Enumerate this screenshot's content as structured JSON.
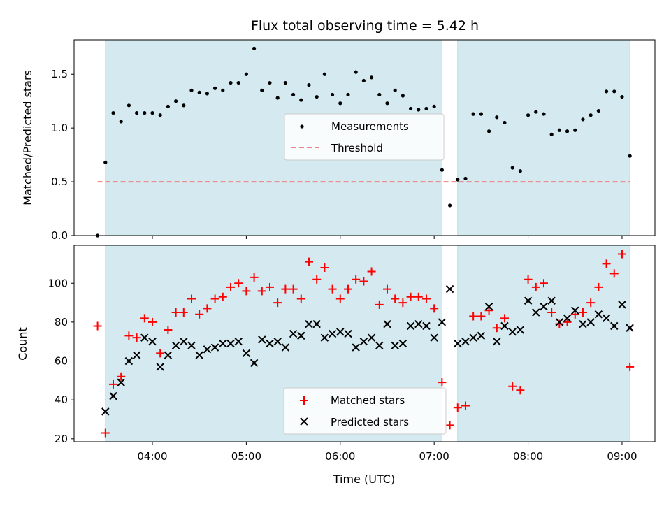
{
  "chart_data": [
    {
      "type": "scatter",
      "title": "Flux total observing time = 5.42 h",
      "ylabel": "Matched/Predicted stars",
      "xlabel": "",
      "ylim": [
        0,
        1.82
      ],
      "xlim": [
        "03:10",
        "09:21"
      ],
      "yticks": [
        0.0,
        0.5,
        1.0,
        1.5
      ],
      "ytick_labels": [
        "0.0",
        "0.5",
        "1.0",
        "1.5"
      ],
      "shaded_intervals": [
        [
          "03:30",
          "07:05"
        ],
        [
          "07:15",
          "09:05"
        ]
      ],
      "shade_color": "#d4eaf0",
      "legend_position": "center",
      "series": [
        {
          "name": "Measurements",
          "marker": "dot",
          "color": "#000000",
          "points": [
            [
              "03:25",
              0.0
            ],
            [
              "03:30",
              0.68
            ],
            [
              "03:35",
              1.14
            ],
            [
              "03:40",
              1.06
            ],
            [
              "03:45",
              1.21
            ],
            [
              "03:50",
              1.14
            ],
            [
              "03:55",
              1.14
            ],
            [
              "04:00",
              1.14
            ],
            [
              "04:05",
              1.12
            ],
            [
              "04:10",
              1.2
            ],
            [
              "04:15",
              1.25
            ],
            [
              "04:20",
              1.21
            ],
            [
              "04:25",
              1.35
            ],
            [
              "04:30",
              1.33
            ],
            [
              "04:35",
              1.32
            ],
            [
              "04:40",
              1.37
            ],
            [
              "04:45",
              1.35
            ],
            [
              "04:50",
              1.42
            ],
            [
              "04:55",
              1.42
            ],
            [
              "05:00",
              1.5
            ],
            [
              "05:05",
              1.74
            ],
            [
              "05:10",
              1.35
            ],
            [
              "05:15",
              1.42
            ],
            [
              "05:20",
              1.28
            ],
            [
              "05:25",
              1.42
            ],
            [
              "05:30",
              1.31
            ],
            [
              "05:35",
              1.26
            ],
            [
              "05:40",
              1.4
            ],
            [
              "05:45",
              1.29
            ],
            [
              "05:50",
              1.5
            ],
            [
              "05:55",
              1.31
            ],
            [
              "06:00",
              1.23
            ],
            [
              "06:05",
              1.31
            ],
            [
              "06:10",
              1.52
            ],
            [
              "06:15",
              1.44
            ],
            [
              "06:20",
              1.47
            ],
            [
              "06:25",
              1.31
            ],
            [
              "06:30",
              1.23
            ],
            [
              "06:35",
              1.35
            ],
            [
              "06:40",
              1.3
            ],
            [
              "06:45",
              1.18
            ],
            [
              "06:50",
              1.17
            ],
            [
              "06:55",
              1.18
            ],
            [
              "07:00",
              1.2
            ],
            [
              "07:05",
              0.61
            ],
            [
              "07:10",
              0.28
            ],
            [
              "07:15",
              0.52
            ],
            [
              "07:20",
              0.53
            ],
            [
              "07:25",
              1.13
            ],
            [
              "07:30",
              1.13
            ],
            [
              "07:35",
              0.97
            ],
            [
              "07:40",
              1.1
            ],
            [
              "07:45",
              1.05
            ],
            [
              "07:50",
              0.63
            ],
            [
              "07:55",
              0.6
            ],
            [
              "08:00",
              1.12
            ],
            [
              "08:05",
              1.15
            ],
            [
              "08:10",
              1.13
            ],
            [
              "08:15",
              0.94
            ],
            [
              "08:20",
              0.98
            ],
            [
              "08:25",
              0.97
            ],
            [
              "08:30",
              0.98
            ],
            [
              "08:35",
              1.08
            ],
            [
              "08:40",
              1.12
            ],
            [
              "08:45",
              1.16
            ],
            [
              "08:50",
              1.34
            ],
            [
              "08:55",
              1.34
            ],
            [
              "09:00",
              1.29
            ],
            [
              "09:05",
              0.74
            ]
          ]
        },
        {
          "name": "Threshold",
          "marker": "dashed-line",
          "color": "#f08080",
          "points": [
            [
              "03:25",
              0.5
            ],
            [
              "09:05",
              0.5
            ]
          ]
        }
      ]
    },
    {
      "type": "scatter",
      "title": "",
      "ylabel": "Count",
      "xlabel": "Time (UTC)",
      "ylim": [
        18.5,
        119.5
      ],
      "xlim": [
        "03:10",
        "09:21"
      ],
      "yticks": [
        20,
        40,
        60,
        80,
        100
      ],
      "ytick_labels": [
        "20",
        "40",
        "60",
        "80",
        "100"
      ],
      "xtick_labels": [
        "04:00",
        "05:00",
        "06:00",
        "07:00",
        "08:00",
        "09:00"
      ],
      "shaded_intervals": [
        [
          "03:30",
          "07:05"
        ],
        [
          "07:15",
          "09:05"
        ]
      ],
      "shade_color": "#d4eaf0",
      "legend_position": "lower center",
      "series": [
        {
          "name": "Matched stars",
          "marker": "plus",
          "color": "#ff0000",
          "points": [
            [
              "03:25",
              78
            ],
            [
              "03:30",
              23
            ],
            [
              "03:35",
              48
            ],
            [
              "03:40",
              52
            ],
            [
              "03:45",
              73
            ],
            [
              "03:50",
              72
            ],
            [
              "03:55",
              82
            ],
            [
              "04:00",
              80
            ],
            [
              "04:05",
              64
            ],
            [
              "04:10",
              76
            ],
            [
              "04:15",
              85
            ],
            [
              "04:20",
              85
            ],
            [
              "04:25",
              92
            ],
            [
              "04:30",
              84
            ],
            [
              "04:35",
              87
            ],
            [
              "04:40",
              92
            ],
            [
              "04:45",
              93
            ],
            [
              "04:50",
              98
            ],
            [
              "04:55",
              100
            ],
            [
              "05:00",
              96
            ],
            [
              "05:05",
              103
            ],
            [
              "05:10",
              96
            ],
            [
              "05:15",
              98
            ],
            [
              "05:20",
              90
            ],
            [
              "05:25",
              97
            ],
            [
              "05:30",
              97
            ],
            [
              "05:35",
              92
            ],
            [
              "05:40",
              111
            ],
            [
              "05:45",
              102
            ],
            [
              "05:50",
              108
            ],
            [
              "05:55",
              97
            ],
            [
              "06:00",
              92
            ],
            [
              "06:05",
              97
            ],
            [
              "06:10",
              102
            ],
            [
              "06:15",
              101
            ],
            [
              "06:20",
              106
            ],
            [
              "06:25",
              89
            ],
            [
              "06:30",
              97
            ],
            [
              "06:35",
              92
            ],
            [
              "06:40",
              90
            ],
            [
              "06:45",
              93
            ],
            [
              "06:50",
              93
            ],
            [
              "06:55",
              92
            ],
            [
              "07:00",
              87
            ],
            [
              "07:05",
              49
            ],
            [
              "07:10",
              27
            ],
            [
              "07:15",
              36
            ],
            [
              "07:20",
              37
            ],
            [
              "07:25",
              83
            ],
            [
              "07:30",
              83
            ],
            [
              "07:35",
              86
            ],
            [
              "07:40",
              77
            ],
            [
              "07:45",
              82
            ],
            [
              "07:50",
              47
            ],
            [
              "07:55",
              45
            ],
            [
              "08:00",
              102
            ],
            [
              "08:05",
              98
            ],
            [
              "08:10",
              100
            ],
            [
              "08:15",
              85
            ],
            [
              "08:20",
              79
            ],
            [
              "08:25",
              80
            ],
            [
              "08:30",
              84
            ],
            [
              "08:35",
              85
            ],
            [
              "08:40",
              90
            ],
            [
              "08:45",
              98
            ],
            [
              "08:50",
              110
            ],
            [
              "08:55",
              105
            ],
            [
              "09:00",
              115
            ],
            [
              "09:05",
              57
            ]
          ]
        },
        {
          "name": "Predicted stars",
          "marker": "x",
          "color": "#000000",
          "points": [
            [
              "03:30",
              34
            ],
            [
              "03:35",
              42
            ],
            [
              "03:40",
              49
            ],
            [
              "03:45",
              60
            ],
            [
              "03:50",
              63
            ],
            [
              "03:55",
              72
            ],
            [
              "04:00",
              70
            ],
            [
              "04:05",
              57
            ],
            [
              "04:10",
              63
            ],
            [
              "04:15",
              68
            ],
            [
              "04:20",
              70
            ],
            [
              "04:25",
              68
            ],
            [
              "04:30",
              63
            ],
            [
              "04:35",
              66
            ],
            [
              "04:40",
              67
            ],
            [
              "04:45",
              69
            ],
            [
              "04:50",
              69
            ],
            [
              "04:55",
              70
            ],
            [
              "05:00",
              64
            ],
            [
              "05:05",
              59
            ],
            [
              "05:10",
              71
            ],
            [
              "05:15",
              69
            ],
            [
              "05:20",
              70
            ],
            [
              "05:25",
              67
            ],
            [
              "05:30",
              74
            ],
            [
              "05:35",
              73
            ],
            [
              "05:40",
              79
            ],
            [
              "05:45",
              79
            ],
            [
              "05:50",
              72
            ],
            [
              "05:55",
              74
            ],
            [
              "06:00",
              75
            ],
            [
              "06:05",
              74
            ],
            [
              "06:10",
              67
            ],
            [
              "06:15",
              70
            ],
            [
              "06:20",
              72
            ],
            [
              "06:25",
              68
            ],
            [
              "06:30",
              79
            ],
            [
              "06:35",
              68
            ],
            [
              "06:40",
              69
            ],
            [
              "06:45",
              78
            ],
            [
              "06:50",
              79
            ],
            [
              "06:55",
              78
            ],
            [
              "07:00",
              72
            ],
            [
              "07:05",
              80
            ],
            [
              "07:10",
              97
            ],
            [
              "07:15",
              69
            ],
            [
              "07:20",
              70
            ],
            [
              "07:25",
              72
            ],
            [
              "07:30",
              73
            ],
            [
              "07:35",
              88
            ],
            [
              "07:40",
              70
            ],
            [
              "07:45",
              78
            ],
            [
              "07:50",
              75
            ],
            [
              "07:55",
              76
            ],
            [
              "08:00",
              91
            ],
            [
              "08:05",
              85
            ],
            [
              "08:10",
              88
            ],
            [
              "08:15",
              91
            ],
            [
              "08:20",
              80
            ],
            [
              "08:25",
              82
            ],
            [
              "08:30",
              86
            ],
            [
              "08:35",
              79
            ],
            [
              "08:40",
              80
            ],
            [
              "08:45",
              84
            ],
            [
              "08:50",
              82
            ],
            [
              "08:55",
              78
            ],
            [
              "09:00",
              89
            ],
            [
              "09:05",
              77
            ]
          ]
        }
      ]
    }
  ]
}
